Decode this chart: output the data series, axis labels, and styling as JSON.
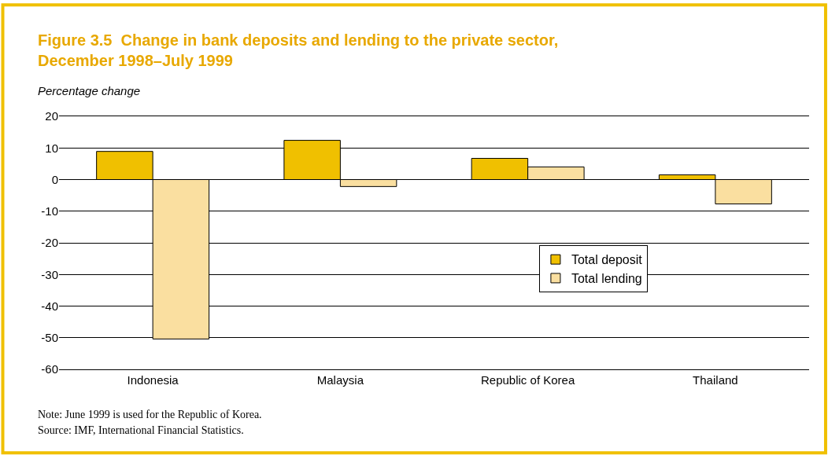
{
  "chart_data": {
    "type": "bar",
    "title": "Figure 3.5  Change in bank deposits and lending to the private sector,\nDecember 1998–July 1999",
    "ylabel": "Percentage change",
    "categories": [
      "Indonesia",
      "Malaysia",
      "Republic of Korea",
      "Thailand"
    ],
    "series": [
      {
        "name": "Total deposit",
        "color": "#f0c000",
        "values": [
          8.9,
          12.4,
          6.7,
          1.5
        ]
      },
      {
        "name": "Total lending",
        "color": "#fadfa0",
        "values": [
          -50.4,
          -2.2,
          4.0,
          -7.7
        ]
      }
    ],
    "ylim": [
      -60,
      20
    ],
    "yticks": [
      -60,
      -50,
      -40,
      -30,
      -20,
      -10,
      0,
      10,
      20
    ],
    "grid": "y",
    "legend": "bottom right",
    "annotations": [
      "Note: June 1999 is used for the Republic of Korea.",
      "Source: IMF, International Financial Statistics."
    ]
  }
}
